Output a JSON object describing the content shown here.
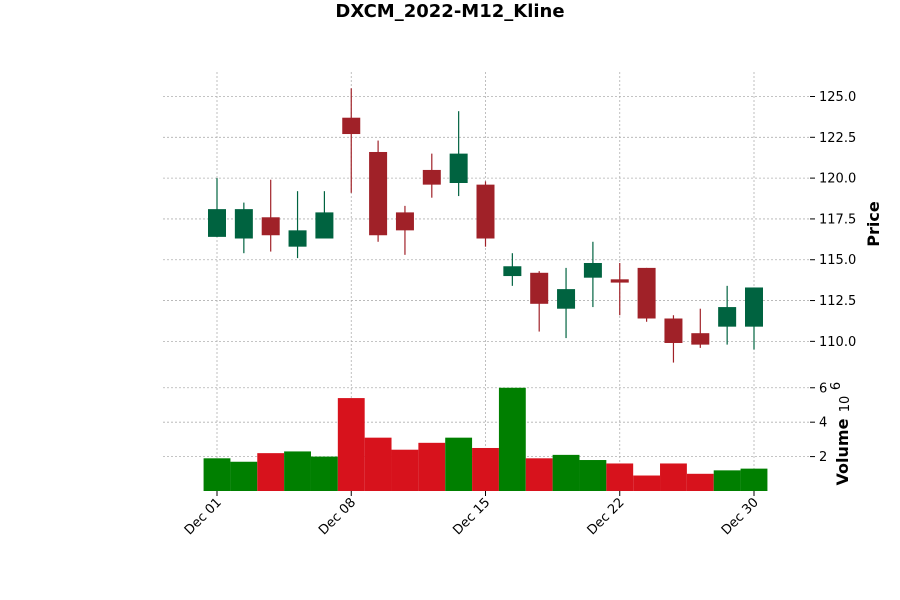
{
  "chart_data": {
    "type": "candlestick",
    "title": "DXCM_2022-M12_Kline",
    "price_axis": {
      "label": "Price",
      "ylim": [
        108,
        126.5
      ],
      "ticks": [
        "110.0",
        "112.5",
        "115.0",
        "117.5",
        "120.0",
        "122.5",
        "125.0"
      ]
    },
    "volume_axis": {
      "label": "Volume",
      "exponent_label": "10",
      "exponent": "6",
      "ylim": [
        0,
        6.8
      ],
      "ticks": [
        "2",
        "4",
        "6"
      ]
    },
    "x_tick_labels": [
      {
        "label": "Dec 01",
        "at": "Dec 01"
      },
      {
        "label": "Dec 08",
        "at": "Dec 08"
      },
      {
        "label": "Dec 15",
        "at": "Dec 15"
      },
      {
        "label": "Dec 22",
        "at": "Dec 22"
      },
      {
        "label": "Dec 30",
        "at": "Dec 30"
      }
    ],
    "colors": {
      "up": "#006340",
      "down": "#a02128",
      "volume_up": "#007f00",
      "volume_down": "#d7121c"
    },
    "grid": true,
    "candles": [
      {
        "date": "Dec 01",
        "open": 116.4,
        "high": 120.0,
        "low": 116.4,
        "close": 118.1,
        "volume": 1.9
      },
      {
        "date": "Dec 02",
        "open": 116.3,
        "high": 118.5,
        "low": 115.4,
        "close": 118.1,
        "volume": 1.7
      },
      {
        "date": "Dec 05",
        "open": 117.6,
        "high": 119.9,
        "low": 115.5,
        "close": 116.5,
        "volume": 2.2
      },
      {
        "date": "Dec 06",
        "open": 115.8,
        "high": 119.2,
        "low": 115.1,
        "close": 116.8,
        "volume": 2.3
      },
      {
        "date": "Dec 07",
        "open": 116.3,
        "high": 119.2,
        "low": 116.3,
        "close": 117.9,
        "volume": 2.0
      },
      {
        "date": "Dec 08",
        "open": 123.7,
        "high": 125.5,
        "low": 119.1,
        "close": 122.7,
        "volume": 5.4
      },
      {
        "date": "Dec 09",
        "open": 121.6,
        "high": 122.3,
        "low": 116.1,
        "close": 116.5,
        "volume": 3.1
      },
      {
        "date": "Dec 12",
        "open": 117.9,
        "high": 118.3,
        "low": 115.3,
        "close": 116.8,
        "volume": 2.4
      },
      {
        "date": "Dec 13",
        "open": 120.5,
        "high": 121.5,
        "low": 118.8,
        "close": 119.6,
        "volume": 2.8
      },
      {
        "date": "Dec 14",
        "open": 119.7,
        "high": 124.1,
        "low": 118.9,
        "close": 121.5,
        "volume": 3.1
      },
      {
        "date": "Dec 15",
        "open": 119.6,
        "high": 119.8,
        "low": 115.8,
        "close": 116.3,
        "volume": 2.5
      },
      {
        "date": "Dec 16",
        "open": 114.0,
        "high": 115.4,
        "low": 113.4,
        "close": 114.6,
        "volume": 6.0
      },
      {
        "date": "Dec 19",
        "open": 114.2,
        "high": 114.3,
        "low": 110.6,
        "close": 112.3,
        "volume": 1.9
      },
      {
        "date": "Dec 20",
        "open": 112.0,
        "high": 114.5,
        "low": 110.2,
        "close": 113.2,
        "volume": 2.1
      },
      {
        "date": "Dec 21",
        "open": 113.9,
        "high": 116.1,
        "low": 112.1,
        "close": 114.8,
        "volume": 1.8
      },
      {
        "date": "Dec 22",
        "open": 113.8,
        "high": 114.8,
        "low": 111.6,
        "close": 113.6,
        "volume": 1.6
      },
      {
        "date": "Dec 23",
        "open": 114.5,
        "high": 114.5,
        "low": 111.2,
        "close": 111.4,
        "volume": 0.9
      },
      {
        "date": "Dec 27",
        "open": 111.4,
        "high": 111.6,
        "low": 108.7,
        "close": 109.9,
        "volume": 1.6
      },
      {
        "date": "Dec 28",
        "open": 110.5,
        "high": 112.0,
        "low": 109.6,
        "close": 109.8,
        "volume": 1.0
      },
      {
        "date": "Dec 29",
        "open": 110.9,
        "high": 113.4,
        "low": 109.8,
        "close": 112.1,
        "volume": 1.2
      },
      {
        "date": "Dec 30",
        "open": 110.9,
        "high": 113.3,
        "low": 109.5,
        "close": 113.3,
        "volume": 1.3
      }
    ]
  }
}
